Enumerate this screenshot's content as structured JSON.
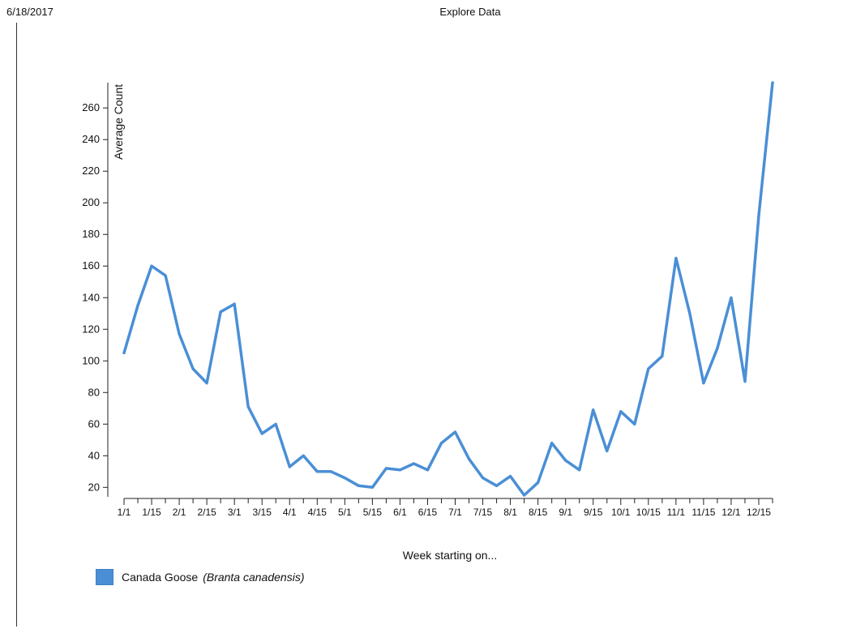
{
  "header": {
    "date": "6/18/2017",
    "title": "Explore Data"
  },
  "legend": {
    "common_name": "Canada Goose",
    "scientific_name": "(Branta canadensis)",
    "color": "#4a8fd6"
  },
  "chart_data": {
    "type": "line",
    "title": "",
    "xlabel": "Week starting on...",
    "ylabel": "Average Count",
    "ylim": [
      14,
      276
    ],
    "yticks": [
      20,
      40,
      60,
      80,
      100,
      120,
      140,
      160,
      180,
      200,
      220,
      240,
      260
    ],
    "x_tick_labels": [
      "1/1",
      "1/15",
      "2/1",
      "2/15",
      "3/1",
      "3/15",
      "4/1",
      "4/15",
      "5/1",
      "5/15",
      "6/1",
      "6/15",
      "7/1",
      "7/15",
      "8/1",
      "8/15",
      "9/1",
      "9/15",
      "10/1",
      "10/15",
      "11/1",
      "11/15",
      "12/1",
      "12/15"
    ],
    "weeks_per_month": 4,
    "series": [
      {
        "name": "Canada Goose (Branta canadensis)",
        "color": "#4a8fd6",
        "values": [
          105,
          135,
          160,
          154,
          117,
          95,
          86,
          131,
          136,
          71,
          54,
          60,
          33,
          40,
          30,
          30,
          26,
          21,
          20,
          32,
          31,
          35,
          31,
          48,
          55,
          38,
          26,
          21,
          27,
          15,
          23,
          48,
          37,
          31,
          69,
          43,
          68,
          60,
          95,
          103,
          165,
          130,
          86,
          108,
          140,
          87,
          192,
          276
        ]
      }
    ]
  }
}
